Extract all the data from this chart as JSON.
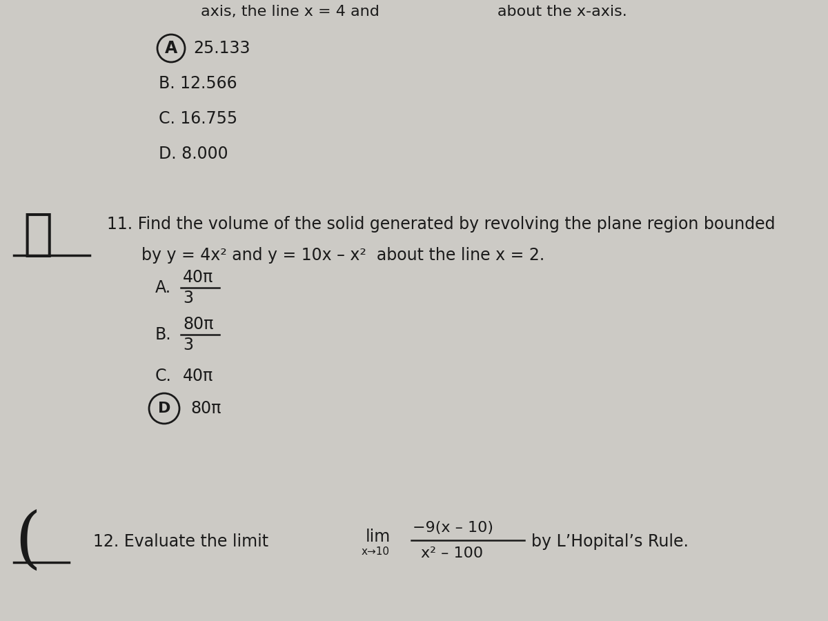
{
  "bg_color": "#cccac5",
  "text_color": "#1a1a1a",
  "font_size_main": 17,
  "font_size_choice": 17,
  "font_size_small": 11,
  "top_partial": "axis, the line x = 4 and               about the x-axis.",
  "choiceA": "25.133",
  "choiceB": "B. 12.566",
  "choiceC": "C. 16.755",
  "choiceD": "D. 8.000",
  "q11_line1": "11. Find the volume of the solid generated by revolving the plane region bounded",
  "q11_line2": "by y = 4x² and y = 10x – x²  about the line x = 2.",
  "q11_A": "A.",
  "q11_Anum": "40π",
  "q11_Aden": "3",
  "q11_B": "B.",
  "q11_Bnum": "80π",
  "q11_Bden": "3",
  "q11_C": "C.",
  "q11_Cval": "40π",
  "q11_Dval": "80π",
  "q12_pre": "12. Evaluate the limit",
  "q12_lim": "lim",
  "q12_sub": "x→10",
  "q12_num": "−9(x – 10)",
  "q12_den": "x² – 100",
  "q12_post": "by L’Hopital’s Rule."
}
